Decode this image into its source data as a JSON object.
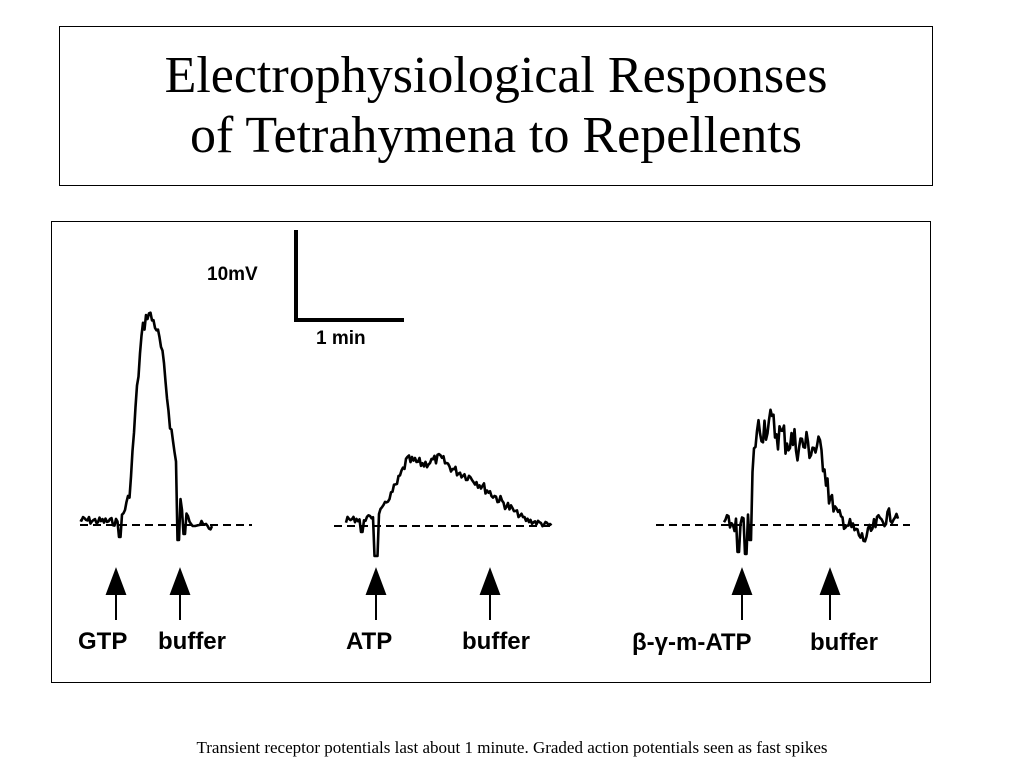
{
  "slide": {
    "title_line1": "Electrophysiological Responses",
    "title_line2": "of Tetrahymena to Repellents",
    "caption": "Transient receptor potentials last about 1 minute. Graded action potentials seen as fast spikes"
  },
  "figure": {
    "scale_bar": {
      "vertical_label": "10mV",
      "horizontal_label": "1 min"
    },
    "traces": [
      {
        "stimulus_label": "GTP",
        "wash_label": "buffer",
        "response": "large transient depolarization"
      },
      {
        "stimulus_label": "ATP",
        "wash_label": "buffer",
        "response": "moderate slow depolarization"
      },
      {
        "stimulus_label": "β-γ-m-ATP",
        "wash_label": "buffer",
        "response": "sustained depolarization with fast spikes"
      }
    ]
  }
}
